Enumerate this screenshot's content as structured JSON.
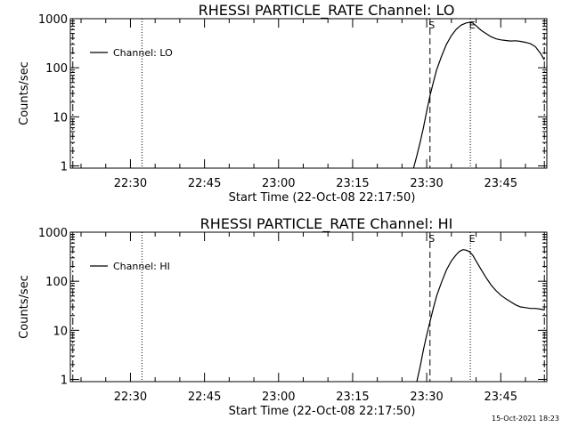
{
  "chart_data": [
    {
      "type": "line",
      "title": "RHESSI PARTICLE_RATE Channel: LO",
      "xlabel": "Start Time (22-Oct-08 22:17:50)",
      "ylabel": "Counts/sec",
      "yscale": "log",
      "ylim": [
        0.9,
        1000
      ],
      "xlim": [
        "22:17:50",
        "23:54:20"
      ],
      "xticks": [
        "22:30",
        "22:45",
        "23:00",
        "23:15",
        "23:30",
        "23:45"
      ],
      "yticks": [
        "1",
        "10",
        "100",
        "1000"
      ],
      "legend": {
        "label": "Channel: LO",
        "position": "top-left"
      },
      "event_markers": [
        {
          "label": "S",
          "x": "23:30:40",
          "style": "dashed"
        },
        {
          "label": "E",
          "x": "23:38:50",
          "style": "dotted"
        }
      ],
      "reference_lines": [
        {
          "x": "22:18:20",
          "style": "dash-dot"
        },
        {
          "x": "22:32:20",
          "style": "dotted"
        },
        {
          "x": "23:53:50",
          "style": "dash-dot"
        }
      ],
      "series": [
        {
          "name": "Channel: LO",
          "x": [
            "23:27:20",
            "23:28:00",
            "23:28:40",
            "23:29:20",
            "23:30:00",
            "23:30:40",
            "23:31:20",
            "23:32:00",
            "23:33:00",
            "23:34:00",
            "23:35:00",
            "23:36:00",
            "23:37:00",
            "23:38:00",
            "23:38:40",
            "23:39:20",
            "23:40:00",
            "23:41:00",
            "23:42:00",
            "23:43:00",
            "23:44:00",
            "23:45:00",
            "23:46:00",
            "23:47:00",
            "23:48:00",
            "23:49:00",
            "23:50:00",
            "23:51:00",
            "23:52:00",
            "23:53:00",
            "23:53:50"
          ],
          "y": [
            0.9,
            1.6,
            3.0,
            6.0,
            13,
            27,
            50,
            90,
            170,
            300,
            450,
            610,
            740,
            820,
            840,
            820,
            720,
            580,
            500,
            430,
            390,
            370,
            360,
            350,
            355,
            345,
            330,
            310,
            270,
            200,
            145
          ]
        }
      ]
    },
    {
      "type": "line",
      "title": "RHESSI PARTICLE_RATE Channel: HI",
      "xlabel": "Start Time (22-Oct-08 22:17:50)",
      "ylabel": "Counts/sec",
      "yscale": "log",
      "ylim": [
        0.9,
        1000
      ],
      "xlim": [
        "22:17:50",
        "23:54:20"
      ],
      "xticks": [
        "22:30",
        "22:45",
        "23:00",
        "23:15",
        "23:30",
        "23:45"
      ],
      "yticks": [
        "1",
        "10",
        "100",
        "1000"
      ],
      "legend": {
        "label": "Channel: HI",
        "position": "top-left"
      },
      "event_markers": [
        {
          "label": "S",
          "x": "23:30:40",
          "style": "dashed"
        },
        {
          "label": "E",
          "x": "23:38:50",
          "style": "dotted"
        }
      ],
      "reference_lines": [
        {
          "x": "22:18:20",
          "style": "dash-dot"
        },
        {
          "x": "22:32:20",
          "style": "dotted"
        },
        {
          "x": "23:53:50",
          "style": "dash-dot"
        }
      ],
      "series": [
        {
          "name": "Channel: HI",
          "x": [
            "23:28:00",
            "23:28:40",
            "23:29:20",
            "23:30:00",
            "23:30:40",
            "23:31:20",
            "23:32:00",
            "23:33:00",
            "23:34:00",
            "23:35:00",
            "23:36:00",
            "23:36:40",
            "23:37:20",
            "23:38:00",
            "23:38:40",
            "23:39:20",
            "23:40:00",
            "23:41:00",
            "23:42:00",
            "23:43:00",
            "23:44:00",
            "23:45:00",
            "23:46:00",
            "23:47:00",
            "23:48:00",
            "23:49:00",
            "23:50:00",
            "23:51:00",
            "23:52:00",
            "23:53:00",
            "23:53:50"
          ],
          "y": [
            0.9,
            1.8,
            4.0,
            8.0,
            15,
            28,
            50,
            95,
            170,
            260,
            350,
            410,
            440,
            430,
            400,
            340,
            260,
            175,
            120,
            85,
            65,
            52,
            44,
            38,
            33,
            30,
            29,
            28,
            28,
            27,
            26
          ]
        }
      ]
    }
  ],
  "timestamp": "15-Oct-2021 18:23"
}
